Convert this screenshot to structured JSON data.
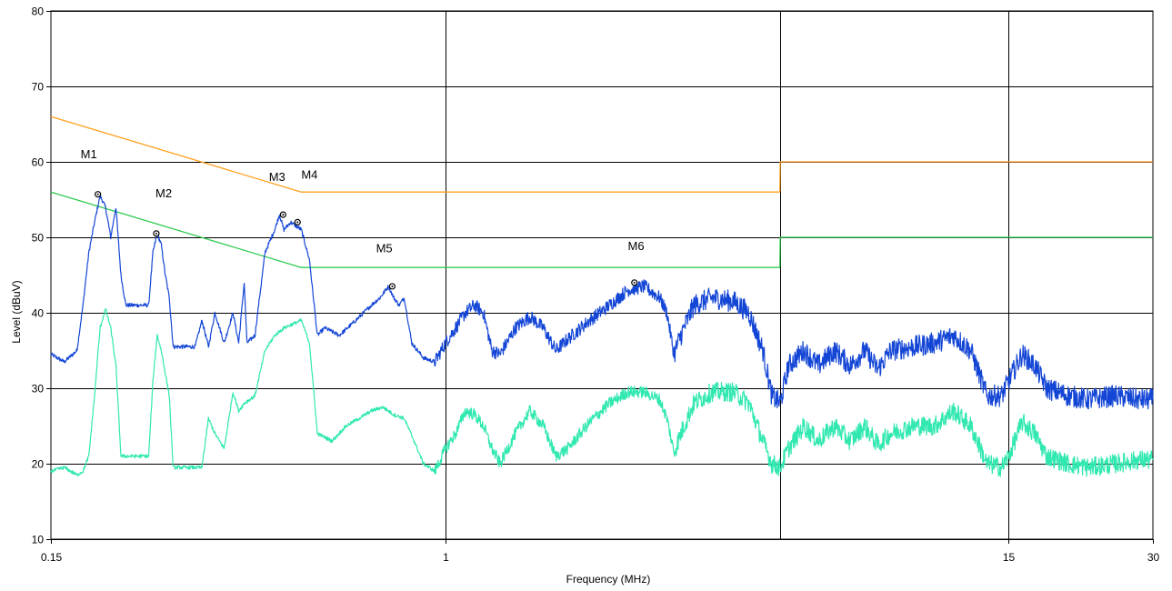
{
  "chart_data": {
    "type": "line",
    "xlabel": "Frequency (MHz)",
    "ylabel": "Level (dBuV)",
    "x_scale": "log",
    "xlim": [
      0.15,
      30
    ],
    "ylim": [
      10,
      80
    ],
    "x_ticks": [
      {
        "value": 0.15,
        "label": "0.15"
      },
      {
        "value": 1,
        "label": "1"
      },
      {
        "value": 15,
        "label": "15"
      },
      {
        "value": 30,
        "label": "30"
      }
    ],
    "y_ticks": [
      10,
      20,
      30,
      40,
      50,
      60,
      70,
      80
    ],
    "grid_x": [
      1,
      5,
      15
    ],
    "grid": true,
    "colors": {
      "qp_limit": "#ffa020",
      "avg_limit": "#30cc50",
      "peak_trace": "#1446d6",
      "avg_trace": "#30e8b0",
      "grid": "#000000"
    },
    "series": [
      {
        "key": "qp_limit",
        "points": [
          [
            0.15,
            66
          ],
          [
            0.5,
            56
          ],
          [
            4.99,
            56
          ],
          [
            5,
            60
          ],
          [
            30,
            60
          ]
        ]
      },
      {
        "key": "avg_limit",
        "points": [
          [
            0.15,
            56
          ],
          [
            0.5,
            46
          ],
          [
            4.99,
            46
          ],
          [
            5,
            50
          ],
          [
            30,
            50
          ]
        ]
      },
      {
        "key": "peak_trace",
        "points": [
          [
            0.15,
            34.5
          ],
          [
            0.16,
            33.5
          ],
          [
            0.17,
            35
          ],
          [
            0.175,
            41
          ],
          [
            0.18,
            48
          ],
          [
            0.185,
            52
          ],
          [
            0.19,
            55.5
          ],
          [
            0.195,
            54
          ],
          [
            0.2,
            50
          ],
          [
            0.205,
            54
          ],
          [
            0.21,
            45
          ],
          [
            0.215,
            41
          ],
          [
            0.24,
            41
          ],
          [
            0.245,
            48
          ],
          [
            0.25,
            50.5
          ],
          [
            0.255,
            49
          ],
          [
            0.26,
            45
          ],
          [
            0.265,
            42
          ],
          [
            0.27,
            35.5
          ],
          [
            0.3,
            35.5
          ],
          [
            0.31,
            39
          ],
          [
            0.32,
            35.5
          ],
          [
            0.33,
            40
          ],
          [
            0.345,
            36
          ],
          [
            0.36,
            40
          ],
          [
            0.37,
            36
          ],
          [
            0.38,
            44
          ],
          [
            0.385,
            36
          ],
          [
            0.4,
            37
          ],
          [
            0.42,
            48
          ],
          [
            0.44,
            51
          ],
          [
            0.45,
            53
          ],
          [
            0.46,
            51
          ],
          [
            0.475,
            52
          ],
          [
            0.5,
            51
          ],
          [
            0.52,
            47
          ],
          [
            0.54,
            37
          ],
          [
            0.56,
            38
          ],
          [
            0.6,
            37
          ],
          [
            0.65,
            39
          ],
          [
            0.7,
            41
          ],
          [
            0.73,
            42
          ],
          [
            0.76,
            43.5
          ],
          [
            0.78,
            42
          ],
          [
            0.8,
            41
          ],
          [
            0.82,
            42
          ],
          [
            0.85,
            36
          ],
          [
            0.9,
            34
          ],
          [
            0.95,
            33.5
          ],
          [
            1.0,
            36
          ],
          [
            1.05,
            38
          ],
          [
            1.1,
            40
          ],
          [
            1.15,
            41
          ],
          [
            1.2,
            40
          ],
          [
            1.25,
            35
          ],
          [
            1.3,
            34.5
          ],
          [
            1.4,
            38
          ],
          [
            1.5,
            39.5
          ],
          [
            1.6,
            38
          ],
          [
            1.7,
            35
          ],
          [
            1.8,
            36.5
          ],
          [
            2.0,
            39
          ],
          [
            2.2,
            41
          ],
          [
            2.4,
            43
          ],
          [
            2.6,
            43.5
          ],
          [
            2.8,
            42
          ],
          [
            2.9,
            40
          ],
          [
            3.0,
            34.5
          ],
          [
            3.1,
            37
          ],
          [
            3.3,
            41
          ],
          [
            3.6,
            42
          ],
          [
            4.0,
            41.5
          ],
          [
            4.3,
            40
          ],
          [
            4.6,
            35
          ],
          [
            4.8,
            29
          ],
          [
            5.0,
            28
          ],
          [
            5.2,
            33
          ],
          [
            5.6,
            35
          ],
          [
            6.0,
            33
          ],
          [
            6.5,
            35
          ],
          [
            7.0,
            33
          ],
          [
            7.5,
            35
          ],
          [
            8.0,
            32.5
          ],
          [
            8.5,
            35
          ],
          [
            9.5,
            35.5
          ],
          [
            10.5,
            36
          ],
          [
            11.5,
            37
          ],
          [
            12.5,
            35
          ],
          [
            13.5,
            29
          ],
          [
            14.5,
            29
          ],
          [
            15.0,
            31
          ],
          [
            16.0,
            34.5
          ],
          [
            17.0,
            33
          ],
          [
            18.0,
            30
          ],
          [
            20.0,
            29
          ],
          [
            22.0,
            28.5
          ],
          [
            25.0,
            29
          ],
          [
            28.0,
            28.5
          ],
          [
            30.0,
            28.5
          ]
        ]
      },
      {
        "key": "avg_trace",
        "points": [
          [
            0.15,
            19
          ],
          [
            0.16,
            19.5
          ],
          [
            0.17,
            18.5
          ],
          [
            0.175,
            19
          ],
          [
            0.18,
            21
          ],
          [
            0.185,
            29
          ],
          [
            0.19,
            38
          ],
          [
            0.195,
            40.5
          ],
          [
            0.2,
            38
          ],
          [
            0.205,
            33
          ],
          [
            0.21,
            21
          ],
          [
            0.24,
            21
          ],
          [
            0.245,
            31
          ],
          [
            0.25,
            37
          ],
          [
            0.255,
            35
          ],
          [
            0.26,
            32
          ],
          [
            0.265,
            29
          ],
          [
            0.27,
            19.5
          ],
          [
            0.31,
            19.5
          ],
          [
            0.32,
            26
          ],
          [
            0.33,
            24
          ],
          [
            0.345,
            22
          ],
          [
            0.36,
            29.5
          ],
          [
            0.37,
            27
          ],
          [
            0.38,
            28
          ],
          [
            0.4,
            29
          ],
          [
            0.42,
            35
          ],
          [
            0.44,
            37
          ],
          [
            0.46,
            38
          ],
          [
            0.5,
            39
          ],
          [
            0.52,
            36
          ],
          [
            0.54,
            24
          ],
          [
            0.58,
            23
          ],
          [
            0.62,
            25
          ],
          [
            0.66,
            26
          ],
          [
            0.7,
            27
          ],
          [
            0.74,
            27.5
          ],
          [
            0.78,
            26.5
          ],
          [
            0.82,
            26
          ],
          [
            0.86,
            23
          ],
          [
            0.9,
            20
          ],
          [
            0.95,
            19
          ],
          [
            1.0,
            22
          ],
          [
            1.05,
            24
          ],
          [
            1.1,
            27
          ],
          [
            1.15,
            26.5
          ],
          [
            1.2,
            25
          ],
          [
            1.25,
            22
          ],
          [
            1.3,
            20
          ],
          [
            1.4,
            24
          ],
          [
            1.5,
            27
          ],
          [
            1.6,
            25
          ],
          [
            1.7,
            21
          ],
          [
            1.8,
            22
          ],
          [
            2.0,
            25.5
          ],
          [
            2.2,
            28
          ],
          [
            2.4,
            29.5
          ],
          [
            2.6,
            29.5
          ],
          [
            2.8,
            28.5
          ],
          [
            2.9,
            26
          ],
          [
            3.0,
            21.5
          ],
          [
            3.1,
            24
          ],
          [
            3.3,
            28
          ],
          [
            3.6,
            29.5
          ],
          [
            4.0,
            29.5
          ],
          [
            4.3,
            28
          ],
          [
            4.6,
            23
          ],
          [
            4.8,
            20
          ],
          [
            5.0,
            19.5
          ],
          [
            5.2,
            22
          ],
          [
            5.6,
            25
          ],
          [
            6.0,
            23
          ],
          [
            6.5,
            25
          ],
          [
            7.0,
            23
          ],
          [
            7.5,
            25
          ],
          [
            8.0,
            22.5
          ],
          [
            8.5,
            24
          ],
          [
            9.5,
            25
          ],
          [
            10.5,
            25
          ],
          [
            11.5,
            27
          ],
          [
            12.5,
            25
          ],
          [
            13.5,
            20
          ],
          [
            14.5,
            19.5
          ],
          [
            15.0,
            21
          ],
          [
            16.0,
            25.5
          ],
          [
            17.0,
            24
          ],
          [
            18.0,
            21
          ],
          [
            20.0,
            20
          ],
          [
            22.0,
            19.5
          ],
          [
            25.0,
            20
          ],
          [
            28.0,
            20.5
          ],
          [
            30.0,
            20.5
          ]
        ]
      }
    ],
    "markers": [
      {
        "label": "M1",
        "x": 0.188,
        "y": 55.7,
        "label_x": 0.18,
        "label_y": 60.5
      },
      {
        "label": "M2",
        "x": 0.249,
        "y": 50.5,
        "label_x": 0.258,
        "label_y": 55.3
      },
      {
        "label": "M3",
        "x": 0.458,
        "y": 53.0,
        "label_x": 0.445,
        "label_y": 57.5
      },
      {
        "label": "M4",
        "x": 0.491,
        "y": 52.0,
        "label_x": 0.52,
        "label_y": 57.8
      },
      {
        "label": "M5",
        "x": 0.774,
        "y": 43.5,
        "label_x": 0.745,
        "label_y": 48.0
      },
      {
        "label": "M6",
        "x": 2.48,
        "y": 44.0,
        "label_x": 2.5,
        "label_y": 48.3
      }
    ]
  }
}
